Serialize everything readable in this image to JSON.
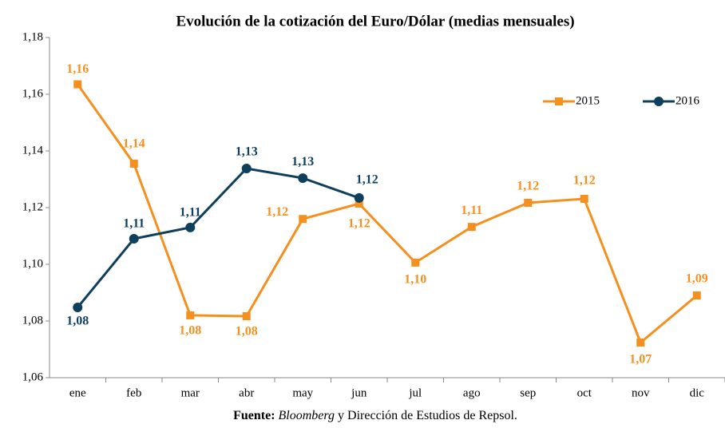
{
  "chart_data": {
    "type": "line",
    "title": "Evolución de la cotización del Euro/Dólar (medias mensuales)",
    "categories": [
      "ene",
      "feb",
      "mar",
      "abr",
      "may",
      "jun",
      "jul",
      "ago",
      "sep",
      "oct",
      "nov",
      "dic"
    ],
    "series": [
      {
        "name": "2015",
        "color": "#f5901e",
        "marker": "square",
        "values": [
          1.1635,
          1.1355,
          1.082,
          1.0817,
          1.116,
          1.1214,
          1.1006,
          1.1132,
          1.1217,
          1.1231,
          1.0724,
          1.089
        ],
        "value_labels": [
          "1,16",
          "1,14",
          "1,08",
          "1,08",
          "1,12",
          "1,12",
          "1,10",
          "1,11",
          "1,12",
          "1,12",
          "1,07",
          "1,09"
        ]
      },
      {
        "name": "2016",
        "color": "#0e3f5c",
        "marker": "circle",
        "values": [
          1.0848,
          1.109,
          1.113,
          1.1338,
          1.1304,
          1.1234,
          null,
          null,
          null,
          null,
          null,
          null
        ],
        "value_labels": [
          "1,08",
          "1,11",
          "1,11",
          "1,13",
          "1,13",
          "1,12",
          null,
          null,
          null,
          null,
          null,
          null
        ]
      }
    ],
    "ylim": [
      1.06,
      1.18
    ],
    "yticks": [
      {
        "value": 1.06,
        "label": "1,06"
      },
      {
        "value": 1.08,
        "label": "1,08"
      },
      {
        "value": 1.1,
        "label": "1,10"
      },
      {
        "value": 1.12,
        "label": "1,12"
      },
      {
        "value": 1.14,
        "label": "1,14"
      },
      {
        "value": 1.16,
        "label": "1,16"
      },
      {
        "value": 1.18,
        "label": "1,18"
      }
    ],
    "grid": false,
    "legend": "top-right",
    "source": {
      "label": "Fuente:",
      "italic": "Bloomberg",
      "rest": "y Dirección de Estudios de Repsol."
    }
  }
}
